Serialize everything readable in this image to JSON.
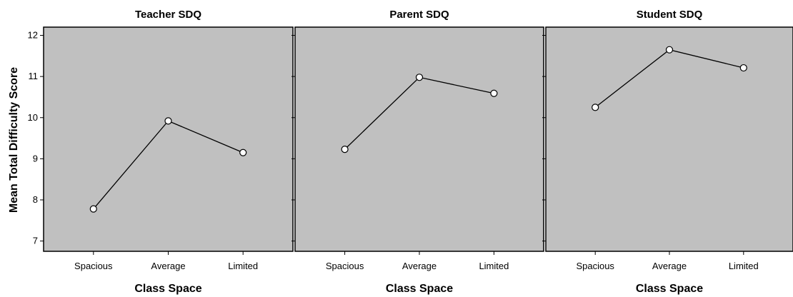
{
  "chart_data": [
    {
      "type": "line",
      "title": "Teacher SDQ",
      "xlabel": "Class Space",
      "ylabel": "Mean Total Difficulty Score",
      "categories": [
        "Spacious",
        "Average",
        "Limited"
      ],
      "values": [
        7.78,
        9.92,
        9.15
      ],
      "ylim": [
        6.75,
        12.2
      ],
      "yticks": [
        7,
        8,
        9,
        10,
        11,
        12
      ]
    },
    {
      "type": "line",
      "title": "Parent SDQ",
      "xlabel": "Class Space",
      "categories": [
        "Spacious",
        "Average",
        "Limited"
      ],
      "values": [
        9.23,
        10.98,
        10.59
      ],
      "ylim": [
        6.75,
        12.2
      ]
    },
    {
      "type": "line",
      "title": "Student SDQ",
      "xlabel": "Class Space",
      "categories": [
        "Spacious",
        "Average",
        "Limited"
      ],
      "values": [
        10.25,
        11.65,
        11.21
      ],
      "ylim": [
        6.75,
        12.2
      ]
    }
  ],
  "style": {
    "panel_bg": "#c0c0c0",
    "line_color": "#000000",
    "marker_fill": "#ffffff"
  }
}
